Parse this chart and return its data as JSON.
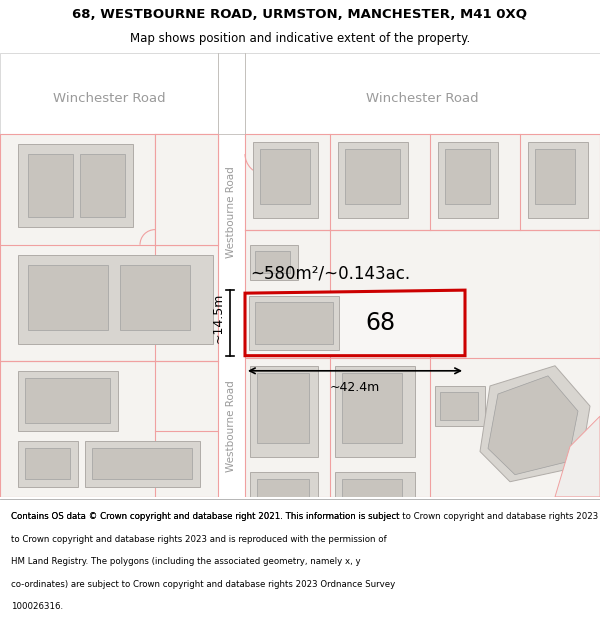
{
  "title_line1": "68, WESTBOURNE ROAD, URMSTON, MANCHESTER, M41 0XQ",
  "title_line2": "Map shows position and indicative extent of the property.",
  "footer_text": "Contains OS data © Crown copyright and database right 2021. This information is subject to Crown copyright and database rights 2023 and is reproduced with the permission of HM Land Registry. The polygons (including the associated geometry, namely x, y co-ordinates) are subject to Crown copyright and database rights 2023 Ordnance Survey 100026316.",
  "bg_color": "#ffffff",
  "map_bg": "#ffffff",
  "road_color": "#ffffff",
  "building_fill": "#d8d5d0",
  "building_edge": "#b0aca8",
  "plot_fill": "#eeecea",
  "plot_edge_color": "#cc0000",
  "road_outline": "#f0a0a0",
  "street_label_color": "#9a9a9a",
  "area_text": "~580m²/~0.143ac.",
  "width_label": "~42.4m",
  "height_label": "~14.5m",
  "number_label": "68",
  "winchester_road_label": "Winchester Road",
  "westbourne_road_label": "Westbourne Road"
}
